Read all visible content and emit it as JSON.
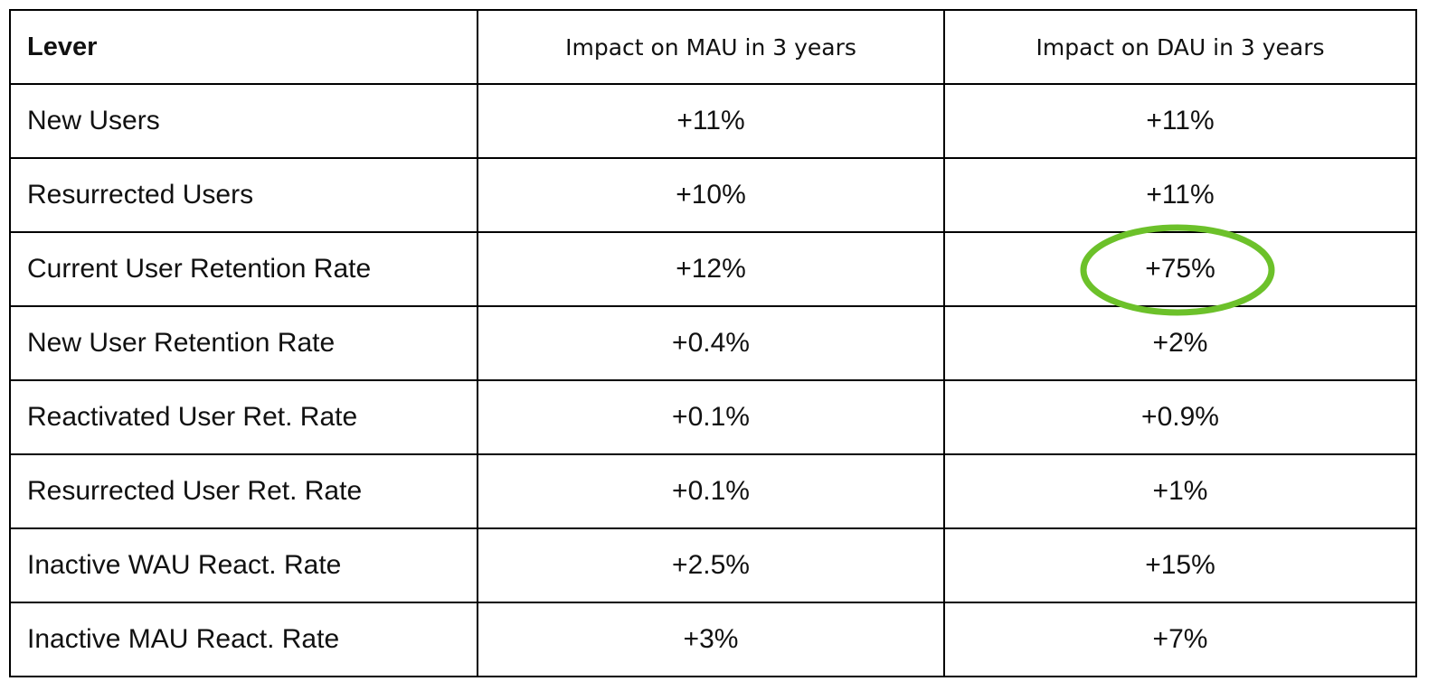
{
  "table": {
    "header": [
      "Lever",
      "Impact on MAU in 3 years",
      "Impact on DAU in 3 years"
    ],
    "rows": [
      [
        "New Users",
        "+11%",
        "+11%"
      ],
      [
        "Resurrected Users",
        "+10%",
        "+11%"
      ],
      [
        "Current User Retention Rate",
        "+12%",
        "+75%"
      ],
      [
        "New User Retention Rate",
        "+0.4%",
        "+2%"
      ],
      [
        "Reactivated User Ret. Rate",
        "+0.1%",
        "+0.9%"
      ],
      [
        "Resurrected User Ret. Rate",
        "+0.1%",
        "+1%"
      ],
      [
        "Inactive WAU React. Rate",
        "+2.5%",
        "+15%"
      ],
      [
        "Inactive MAU React. Rate",
        "+3%",
        "+7%"
      ]
    ]
  }
}
